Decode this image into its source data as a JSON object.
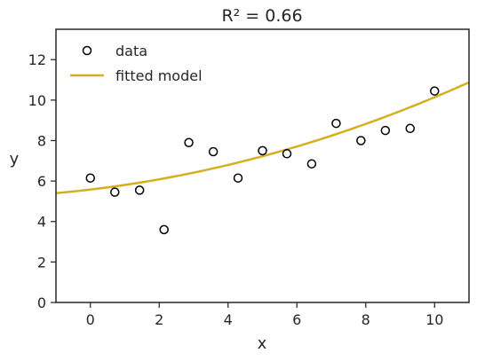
{
  "chart_data": {
    "type": "scatter",
    "title": "R² = 0.66",
    "xlabel": "x",
    "ylabel": "y",
    "xlim": [
      -1.0,
      11.0
    ],
    "ylim": [
      0,
      13.5
    ],
    "xticks": [
      0,
      2,
      4,
      6,
      8,
      10
    ],
    "yticks": [
      0,
      2,
      4,
      6,
      8,
      10,
      12
    ],
    "xtick_labels": [
      "0",
      "2",
      "4",
      "6",
      "8",
      "10"
    ],
    "ytick_labels": [
      "0",
      "2",
      "4",
      "6",
      "8",
      "10",
      "12"
    ],
    "grid": false,
    "legend_position": "top-left",
    "series": [
      {
        "name": "data",
        "kind": "scatter",
        "marker": "open-circle",
        "color": "#000000",
        "x": [
          0.0,
          0.71,
          1.43,
          2.14,
          2.86,
          3.57,
          4.29,
          5.0,
          5.71,
          6.43,
          7.14,
          7.86,
          8.57,
          9.29,
          10.0
        ],
        "y": [
          6.15,
          5.45,
          5.55,
          3.6,
          7.9,
          7.45,
          6.15,
          7.5,
          7.35,
          6.85,
          8.85,
          8.0,
          8.5,
          8.6,
          10.45
        ]
      },
      {
        "name": "fitted model",
        "kind": "line",
        "color": "#d4af1f",
        "model": {
          "form": "quadratic",
          "a": 0.0254,
          "b": 0.202,
          "c": 5.58
        }
      }
    ]
  }
}
